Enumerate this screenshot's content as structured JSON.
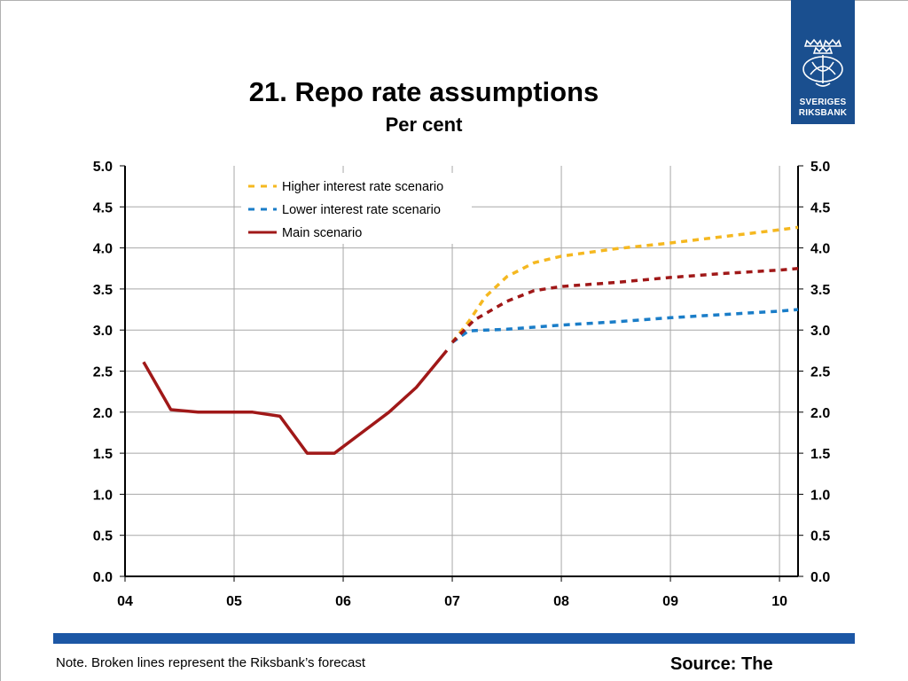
{
  "chart_data": {
    "type": "line",
    "title": "21. Repo rate assumptions",
    "subtitle": "Per cent",
    "xlabel": "",
    "ylabel": "",
    "x_tick_labels": [
      "04",
      "05",
      "06",
      "07",
      "08",
      "09",
      "10"
    ],
    "x_tick_values": [
      2004,
      2005,
      2006,
      2007,
      2008,
      2009,
      2010
    ],
    "xlim": [
      2004,
      2010.17
    ],
    "ylim": [
      0,
      5
    ],
    "y_ticks": [
      "0.0",
      "0.5",
      "1.0",
      "1.5",
      "2.0",
      "2.5",
      "3.0",
      "3.5",
      "4.0",
      "4.5",
      "5.0"
    ],
    "y_axis_both_sides": true,
    "grid": true,
    "legend_position": "top-center",
    "series": [
      {
        "name": "Higher interest rate scenario",
        "style": "dashed",
        "color": "#f5b820",
        "x": [
          2007.0,
          2007.15,
          2007.3,
          2007.5,
          2007.75,
          2008.0,
          2008.5,
          2009.0,
          2009.5,
          2010.0,
          2010.17
        ],
        "y": [
          2.85,
          3.1,
          3.4,
          3.65,
          3.82,
          3.9,
          3.99,
          4.06,
          4.14,
          4.22,
          4.25
        ]
      },
      {
        "name": "Lower interest rate scenario",
        "style": "dashed",
        "color": "#1a7dc8",
        "x": [
          2007.0,
          2007.15,
          2007.5,
          2008.0,
          2008.5,
          2009.0,
          2009.5,
          2010.0,
          2010.17
        ],
        "y": [
          2.85,
          2.99,
          3.01,
          3.06,
          3.1,
          3.15,
          3.19,
          3.23,
          3.25
        ]
      },
      {
        "name": "Main scenario",
        "style": "solid",
        "color": "#a01818",
        "x": [
          2004.17,
          2004.42,
          2004.67,
          2004.92,
          2005.17,
          2005.42,
          2005.67,
          2005.92,
          2006.17,
          2006.42,
          2006.67,
          2006.95
        ],
        "y": [
          2.61,
          2.03,
          2.0,
          2.0,
          2.0,
          1.95,
          1.5,
          1.5,
          1.75,
          2.0,
          2.3,
          2.75
        ]
      },
      {
        "name": "",
        "style": "dashed",
        "color": "#a01818",
        "legend": false,
        "x": [
          2007.0,
          2007.2,
          2007.5,
          2007.75,
          2008.0,
          2008.5,
          2009.0,
          2009.5,
          2010.0,
          2010.17
        ],
        "y": [
          2.85,
          3.12,
          3.35,
          3.48,
          3.53,
          3.58,
          3.64,
          3.69,
          3.73,
          3.75
        ]
      }
    ]
  },
  "logo": {
    "line1": "SVERIGES",
    "line2": "RIKSBANK",
    "bg": "#1a4f8f"
  },
  "footer": {
    "note": "Note. Broken lines represent the Riksbank’s forecast",
    "source": "Source: The"
  }
}
